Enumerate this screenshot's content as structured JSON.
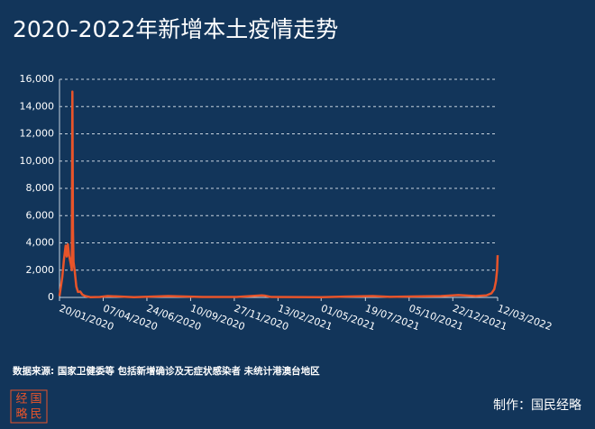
{
  "chart_data": {
    "type": "line",
    "title": "2020-2022年新增本土疫情走势",
    "x": [
      "20/01/2020",
      "25/01/2020",
      "28/01/2020",
      "31/01/2020",
      "02/02/2020",
      "04/02/2020",
      "06/02/2020",
      "09/02/2020",
      "11/02/2020",
      "12/02/2020",
      "13/02/2020",
      "14/02/2020",
      "16/02/2020",
      "19/02/2020",
      "22/02/2020",
      "26/02/2020",
      "01/03/2020",
      "06/03/2020",
      "15/03/2020",
      "01/04/2020",
      "15/04/2020",
      "01/06/2020",
      "01/08/2020",
      "01/10/2020",
      "01/12/2020",
      "15/01/2021",
      "20/01/2021",
      "01/02/2021",
      "01/05/2021",
      "01/08/2021",
      "01/09/2021",
      "01/11/2021",
      "01/12/2021",
      "01/01/2022",
      "01/02/2022",
      "20/02/2022",
      "01/03/2022",
      "06/03/2022",
      "09/03/2022",
      "11/03/2022",
      "12/03/2022"
    ],
    "values": [
      100,
      1500,
      2800,
      3800,
      3000,
      3900,
      3100,
      2500,
      2000,
      15100,
      5100,
      2600,
      2000,
      800,
      400,
      430,
      200,
      100,
      20,
      30,
      100,
      20,
      100,
      30,
      30,
      150,
      130,
      30,
      20,
      100,
      40,
      80,
      100,
      170,
      100,
      150,
      300,
      600,
      1200,
      2000,
      3100
    ],
    "color": "#e8542a",
    "xlim": [
      "20/01/2020",
      "12/03/2022"
    ],
    "xticks": [
      "20/01/2020",
      "07/04/2020",
      "24/06/2020",
      "10/09/2020",
      "27/11/2020",
      "13/02/2021",
      "01/05/2021",
      "19/07/2021",
      "05/10/2021",
      "22/12/2021",
      "12/03/2022"
    ],
    "ylim": [
      0,
      16000
    ],
    "yticks": [
      0,
      {
        "value": 2000,
        "label": "2,000"
      },
      {
        "value": 4000,
        "label": "4,000"
      },
      {
        "value": 6000,
        "label": "6,000"
      },
      {
        "value": 8000,
        "label": "8,000"
      },
      {
        "value": 10000,
        "label": "10,000"
      },
      {
        "value": 12000,
        "label": "12,000"
      },
      {
        "value": 14000,
        "label": "14,000"
      },
      {
        "value": 16000,
        "label": "16,000"
      }
    ],
    "grid": true
  },
  "footer": {
    "source": "数据来源: 国家卫健委等 包括新增确诊及无症状感染者 未统计港澳台地区",
    "credit": "制作：国民经略",
    "logo": [
      "经",
      "国",
      "略",
      "民"
    ]
  }
}
